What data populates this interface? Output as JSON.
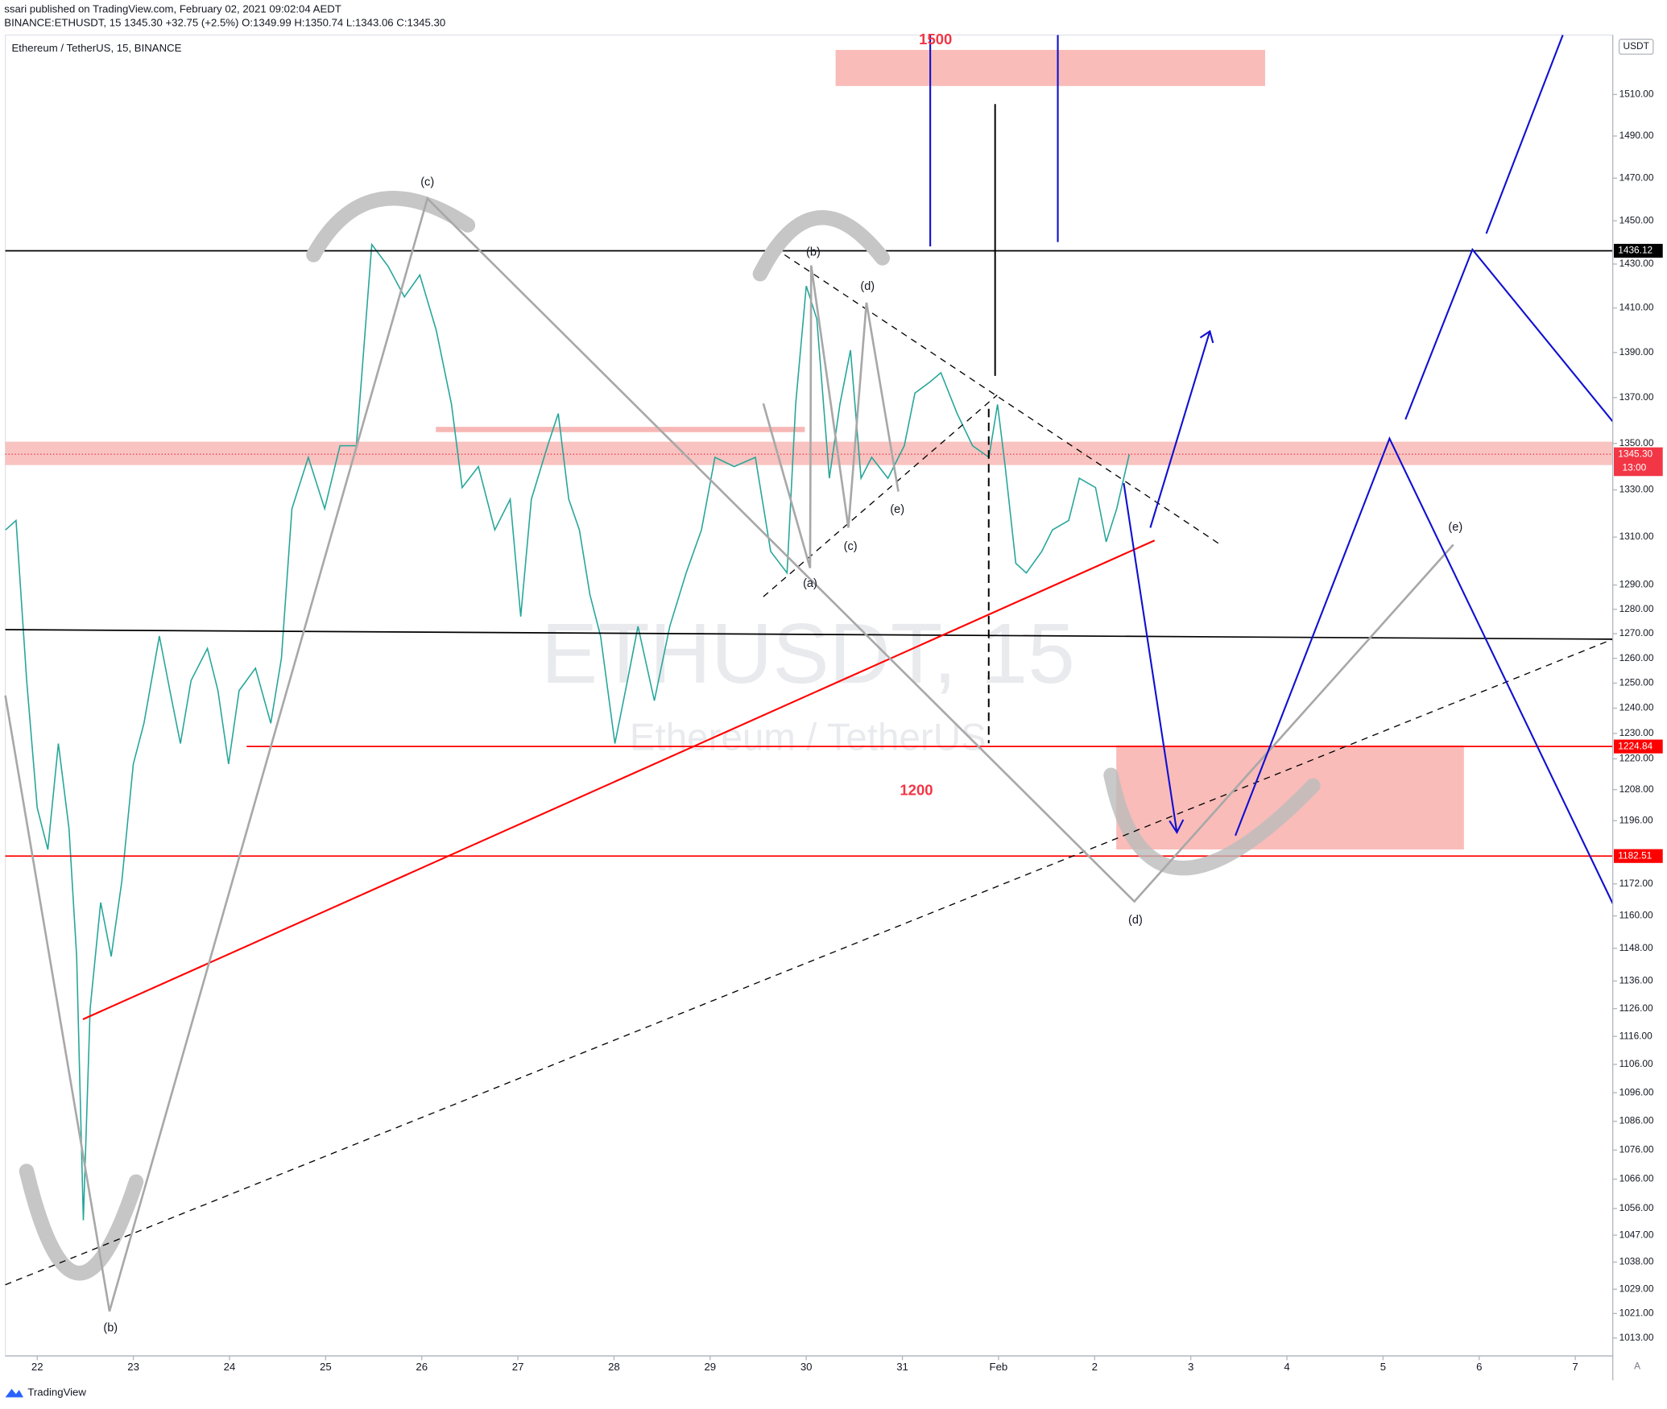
{
  "header": {
    "publisher": "ssari published on TradingView.com, February 02, 2021 09:02:04 AEDT",
    "quote": "BINANCE:ETHUSDT, 15  1345.30  +32.75 (+2.5%)  O:1349.99  H:1350.74  L:1343.06  C:1345.30",
    "footer": "TradingView"
  },
  "chart_data": {
    "type": "line",
    "title": "Ethereum / TetherUS, 15, BINANCE",
    "watermark": "ETHUSDT, 15",
    "watermark_sub": "Ethereum / TetherUS",
    "currency": "USDT",
    "scale_mode": "A",
    "log_scale": true,
    "color": "#26a69a",
    "x": [
      -0.33,
      -0.22,
      -0.11,
      0,
      0.11,
      0.22,
      0.33,
      0.41,
      0.48,
      0.55,
      0.66,
      0.77,
      0.88,
      1.0,
      1.11,
      1.27,
      1.38,
      1.49,
      1.6,
      1.77,
      1.88,
      1.99,
      2.1,
      2.27,
      2.43,
      2.54,
      2.65,
      2.82,
      2.99,
      3.15,
      3.32,
      3.48,
      3.65,
      3.82,
      3.98,
      4.15,
      4.31,
      4.42,
      4.59,
      4.76,
      4.92,
      5.03,
      5.14,
      5.31,
      5.42,
      5.53,
      5.64,
      5.75,
      5.86,
      6.01,
      6.14,
      6.25,
      6.42,
      6.58,
      6.75,
      6.91,
      7.05,
      7.25,
      7.47,
      7.63,
      7.8,
      7.89,
      8.0,
      8.11,
      8.24,
      8.35,
      8.46,
      8.57,
      8.68,
      8.85,
      9.02,
      9.13,
      9.29,
      9.4,
      9.57,
      9.73,
      9.9,
      9.99,
      10.07,
      10.18,
      10.29,
      10.45,
      10.56,
      10.73,
      10.84,
      11.01,
      11.12,
      11.23,
      11.36
    ],
    "values": [
      1313,
      1317,
      1251,
      1201,
      1185,
      1226,
      1193,
      1145,
      1052,
      1126,
      1165,
      1145,
      1173,
      1218,
      1234,
      1269,
      1247,
      1226,
      1251,
      1264,
      1247,
      1218,
      1247,
      1256,
      1234,
      1260,
      1322,
      1344,
      1322,
      1349,
      1349,
      1439,
      1429,
      1415,
      1425,
      1400,
      1367,
      1331,
      1340,
      1313,
      1326,
      1277,
      1326,
      1349,
      1363,
      1326,
      1313,
      1286,
      1269,
      1226,
      1251,
      1273,
      1243,
      1273,
      1295,
      1313,
      1344,
      1340,
      1344,
      1304,
      1295,
      1367,
      1420,
      1405,
      1335,
      1367,
      1391,
      1335,
      1344,
      1335,
      1349,
      1372,
      1377,
      1381,
      1363,
      1349,
      1344,
      1367,
      1340,
      1299,
      1295,
      1304,
      1313,
      1317,
      1335,
      1331,
      1308,
      1322,
      1345.3
    ],
    "xlim": [
      -0.332,
      16.39
    ],
    "ylim": [
      1007.2,
      1539.1
    ],
    "xticks": [
      {
        "value": 0,
        "label": "22"
      },
      {
        "value": 1,
        "label": "23"
      },
      {
        "value": 2,
        "label": "24"
      },
      {
        "value": 3,
        "label": "25"
      },
      {
        "value": 4,
        "label": "26"
      },
      {
        "value": 5,
        "label": "27"
      },
      {
        "value": 6,
        "label": "28"
      },
      {
        "value": 7,
        "label": "29"
      },
      {
        "value": 8,
        "label": "30"
      },
      {
        "value": 9,
        "label": "31"
      },
      {
        "value": 10,
        "label": "Feb"
      },
      {
        "value": 11,
        "label": "2"
      },
      {
        "value": 12,
        "label": "3"
      },
      {
        "value": 13,
        "label": "4"
      },
      {
        "value": 14,
        "label": "5"
      },
      {
        "value": 15,
        "label": "6"
      },
      {
        "value": 16,
        "label": "7"
      }
    ],
    "yticks": [
      {
        "value": 1510,
        "label": "1510.00"
      },
      {
        "value": 1490,
        "label": "1490.00"
      },
      {
        "value": 1470,
        "label": "1470.00"
      },
      {
        "value": 1450,
        "label": "1450.00"
      },
      {
        "value": 1430,
        "label": "1430.00"
      },
      {
        "value": 1410,
        "label": "1410.00"
      },
      {
        "value": 1390,
        "label": "1390.00"
      },
      {
        "value": 1370,
        "label": "1370.00"
      },
      {
        "value": 1350,
        "label": "1350.00"
      },
      {
        "value": 1330,
        "label": "1330.00"
      },
      {
        "value": 1310,
        "label": "1310.00"
      },
      {
        "value": 1290,
        "label": "1290.00"
      },
      {
        "value": 1280,
        "label": "1280.00"
      },
      {
        "value": 1270,
        "label": "1270.00"
      },
      {
        "value": 1260,
        "label": "1260.00"
      },
      {
        "value": 1250,
        "label": "1250.00"
      },
      {
        "value": 1240,
        "label": "1240.00"
      },
      {
        "value": 1230,
        "label": "1230.00"
      },
      {
        "value": 1220,
        "label": "1220.00"
      },
      {
        "value": 1208,
        "label": "1208.00"
      },
      {
        "value": 1196,
        "label": "1196.00"
      },
      {
        "value": 1172,
        "label": "1172.00"
      },
      {
        "value": 1160,
        "label": "1160.00"
      },
      {
        "value": 1148,
        "label": "1148.00"
      },
      {
        "value": 1136,
        "label": "1136.00"
      },
      {
        "value": 1126,
        "label": "1126.00"
      },
      {
        "value": 1116,
        "label": "1116.00"
      },
      {
        "value": 1106,
        "label": "1106.00"
      },
      {
        "value": 1096,
        "label": "1096.00"
      },
      {
        "value": 1086,
        "label": "1086.00"
      },
      {
        "value": 1076,
        "label": "1076.00"
      },
      {
        "value": 1066,
        "label": "1066.00"
      },
      {
        "value": 1056,
        "label": "1056.00"
      },
      {
        "value": 1047,
        "label": "1047.00"
      },
      {
        "value": 1038,
        "label": "1038.00"
      },
      {
        "value": 1029,
        "label": "1029.00"
      },
      {
        "value": 1021,
        "label": "1021.00"
      },
      {
        "value": 1013,
        "label": "1013.00"
      }
    ],
    "levels": [
      1436.12,
      1224.84,
      1182.51
    ],
    "level_colors": [
      "#000000",
      "#ff0000",
      "#ff0000"
    ],
    "last_price": {
      "value": 1345.3,
      "label": "1345.30"
    },
    "countdown": "13:00",
    "last_color": "#f23645",
    "annotations": [
      "(c)",
      "(b)",
      "(d)",
      "(e)",
      "(c)",
      "(a)",
      "(e)",
      "(d)",
      "(b)",
      "1500",
      "1200"
    ]
  }
}
